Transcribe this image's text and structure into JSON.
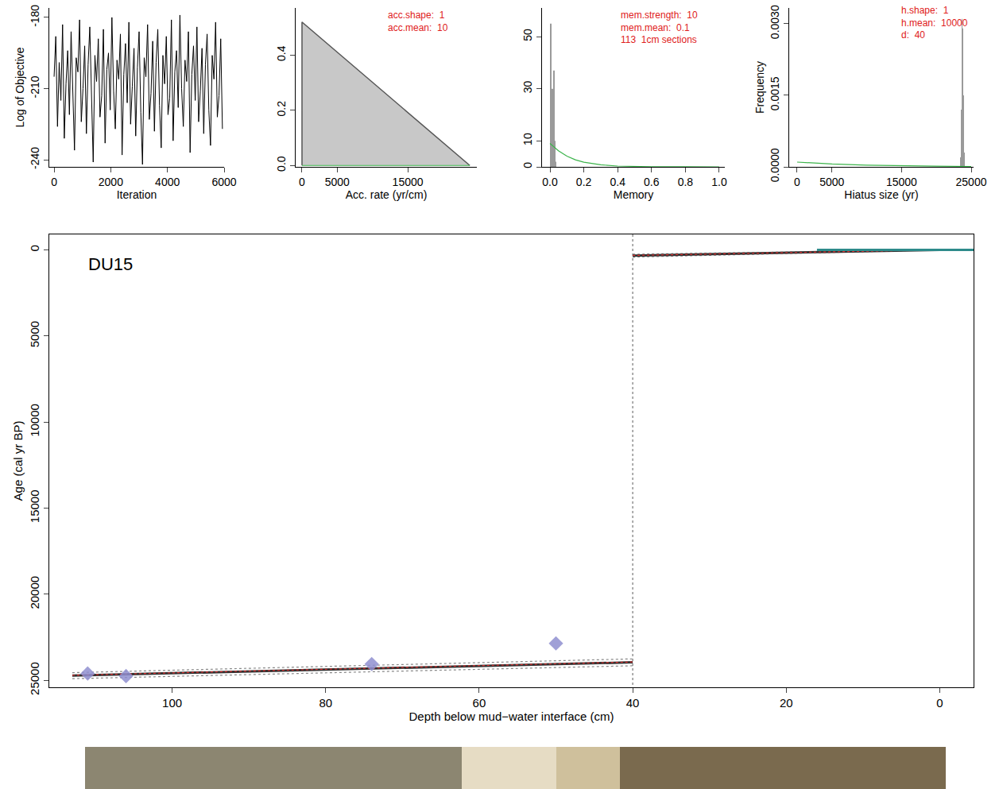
{
  "chart_data": [
    {
      "type": "line",
      "xlabel": "Iteration",
      "ylabel": "Log of Objective",
      "xlim": [
        -170,
        6000
      ],
      "ylim": [
        -243,
        -176
      ],
      "xticks": [
        0,
        2000,
        4000,
        6000
      ],
      "yticks": [
        -240,
        -210,
        -180
      ],
      "series": [
        {
          "type": "line",
          "color": "#000000",
          "line_style": "solid",
          "x": [
            0,
            60,
            120,
            180,
            240,
            300,
            360,
            420,
            480,
            540,
            600,
            660,
            720,
            780,
            840,
            900,
            960,
            1020,
            1080,
            1140,
            1200,
            1260,
            1320,
            1380,
            1440,
            1500,
            1560,
            1620,
            1680,
            1740,
            1800,
            1860,
            1920,
            1980,
            2040,
            2100,
            2160,
            2220,
            2280,
            2340,
            2400,
            2460,
            2520,
            2580,
            2640,
            2700,
            2760,
            2820,
            2880,
            2940,
            3000,
            3060,
            3120,
            3180,
            3240,
            3300,
            3360,
            3420,
            3480,
            3540,
            3600,
            3660,
            3720,
            3780,
            3840,
            3900,
            3960,
            4020,
            4080,
            4140,
            4200,
            4260,
            4320,
            4380,
            4440,
            4500,
            4560,
            4620,
            4680,
            4740,
            4800,
            4860,
            4920,
            4980,
            5040,
            5100,
            5160,
            5220,
            5280,
            5340,
            5400,
            5460,
            5520,
            5580,
            5640,
            5700,
            5760,
            5820,
            5880,
            5940
          ],
          "values": [
            -205,
            -188,
            -226,
            -199,
            -215,
            -183,
            -231,
            -208,
            -194,
            -221,
            -186,
            -212,
            -236,
            -197,
            -203,
            -181,
            -224,
            -210,
            -192,
            -229,
            -200,
            -184,
            -218,
            -241,
            -196,
            -207,
            -189,
            -222,
            -213,
            -185,
            -233,
            -202,
            -195,
            -219,
            -180,
            -211,
            -227,
            -198,
            -206,
            -187,
            -238,
            -204,
            -191,
            -216,
            -182,
            -225,
            -209,
            -193,
            -230,
            -201,
            -186,
            -220,
            -242,
            -197,
            -205,
            -183,
            -223,
            -212,
            -190,
            -228,
            -199,
            -185,
            -217,
            -235,
            -196,
            -208,
            -188,
            -221,
            -214,
            -181,
            -232,
            -203,
            -194,
            -218,
            -179,
            -210,
            -226,
            -198,
            -207,
            -186,
            -237,
            -204,
            -192,
            -215,
            -184,
            -224,
            -211,
            -193,
            -229,
            -200,
            -187,
            -219,
            -234,
            -196,
            -206,
            -182,
            -222,
            -213,
            -189,
            -227
          ]
        }
      ]
    },
    {
      "type": "area",
      "xlabel": "Acc. rate (yr/cm)",
      "xlim": [
        -900,
        24800
      ],
      "ylim": [
        -0.005,
        0.571
      ],
      "xticks": [
        0,
        5000,
        15000
      ],
      "yticks": [
        {
          "value": 0,
          "label": "0.0"
        },
        {
          "value": 0.2,
          "label": "0.2"
        },
        {
          "value": 0.4,
          "label": "0.4"
        }
      ],
      "annotations": [
        "acc.shape:  1",
        "acc.mean:  10"
      ],
      "series": [
        {
          "type": "area",
          "color": "#c8c8c8",
          "x": [
            0,
            0,
            23800
          ],
          "values": [
            0,
            0.52,
            0
          ]
        },
        {
          "type": "line",
          "color": "#3cb44b",
          "line_style": "solid",
          "x": [
            0,
            23800
          ],
          "values": [
            0,
            0
          ]
        }
      ]
    },
    {
      "type": "bar",
      "xlabel": "Memory",
      "xlim": [
        -0.047,
        1.033
      ],
      "ylim": [
        0,
        61
      ],
      "xticks": [
        {
          "value": 0,
          "label": "0.0"
        },
        {
          "value": 0.2,
          "label": "0.2"
        },
        {
          "value": 0.4,
          "label": "0.4"
        },
        {
          "value": 0.6,
          "label": "0.6"
        },
        {
          "value": 0.8,
          "label": "0.8"
        },
        {
          "value": 1,
          "label": "1.0"
        }
      ],
      "yticks": [
        0,
        10,
        30,
        50
      ],
      "annotations": [
        "mem.strength:  10",
        "mem.mean:  0.1",
        "113  1cm sections"
      ],
      "series": [
        {
          "type": "bar",
          "color": "#9a9a9a",
          "x": [
            0.005,
            0.01,
            0.015,
            0.02,
            0.025,
            0.03,
            0.035
          ],
          "values": [
            55,
            8,
            30,
            20,
            37,
            10,
            2
          ]
        },
        {
          "type": "line",
          "color": "#3cb44b",
          "line_style": "solid",
          "x": [
            0,
            0.05,
            0.1,
            0.15,
            0.2,
            0.3,
            0.4,
            0.5,
            0.6,
            0.8,
            1.0
          ],
          "values": [
            9,
            6.2,
            4.1,
            2.7,
            1.8,
            0.8,
            0.3,
            0.12,
            0.05,
            0.01,
            0
          ]
        }
      ]
    },
    {
      "type": "bar",
      "xlabel": "Hiatus size (yr)",
      "ylabel": "Frequency",
      "xlim": [
        -1140,
        25340
      ],
      "ylim": [
        0,
        0.00333
      ],
      "xticks": [
        0,
        5000,
        15000,
        25000
      ],
      "yticks": [
        {
          "value": 0,
          "label": "0.0000"
        },
        {
          "value": 0.0015,
          "label": "0.0015"
        },
        {
          "value": 0.003,
          "label": "0.0030"
        }
      ],
      "annotations": [
        "h.shape:  1",
        "h.mean:  10000",
        "d:  40"
      ],
      "series": [
        {
          "type": "bar",
          "color": "#9a9a9a",
          "x": [
            23500,
            23600,
            23700,
            23800,
            23900,
            24000
          ],
          "values": [
            0.0002,
            0.0012,
            0.0031,
            0.0029,
            0.0015,
            0.0003
          ]
        },
        {
          "type": "line",
          "color": "#3cb44b",
          "line_style": "solid",
          "x": [
            0,
            5000,
            10000,
            15000,
            20000,
            25000
          ],
          "values": [
            0.0001,
            6e-05,
            3.7e-05,
            2.2e-05,
            1.35e-05,
            8.2e-06
          ]
        }
      ]
    },
    {
      "type": "line",
      "xlabel": "Depth below mud−water interface (cm)",
      "ylabel": "Age (cal yr BP)",
      "xlim": [
        116,
        -4.4
      ],
      "ylim": [
        25400,
        -900
      ],
      "xticks": [
        100,
        80,
        60,
        40,
        20,
        0
      ],
      "yticks": [
        0,
        5000,
        10000,
        15000,
        20000,
        25000
      ],
      "annotations": [
        "DU15"
      ],
      "series": [
        {
          "type": "line",
          "color": "#777777",
          "line_style": "dotted",
          "x": [
            40,
            40
          ],
          "values": [
            -900,
            25400
          ]
        },
        {
          "type": "line",
          "color": "#888888",
          "line_style": "dotted",
          "x": [
            113,
            40
          ],
          "values": [
            24900,
            24150
          ]
        },
        {
          "type": "line",
          "color": "#888888",
          "line_style": "dotted",
          "x": [
            113,
            40
          ],
          "values": [
            24550,
            23750
          ]
        },
        {
          "type": "line",
          "color": "#333333",
          "line_style": "solid",
          "x": [
            113,
            40
          ],
          "values": [
            24720,
            23950
          ]
        },
        {
          "type": "line",
          "color": "#e03030",
          "line_style": "dotted",
          "x": [
            113,
            40
          ],
          "values": [
            24700,
            23930
          ]
        },
        {
          "type": "line",
          "color": "#888888",
          "line_style": "dotted",
          "x": [
            40,
            0
          ],
          "values": [
            420,
            0
          ]
        },
        {
          "type": "line",
          "color": "#888888",
          "line_style": "dotted",
          "x": [
            40,
            0
          ],
          "values": [
            250,
            0
          ]
        },
        {
          "type": "line",
          "color": "#333333",
          "line_style": "solid",
          "x": [
            40,
            0
          ],
          "values": [
            330,
            0
          ]
        },
        {
          "type": "line",
          "color": "#e03030",
          "line_style": "dotted",
          "x": [
            40,
            0
          ],
          "values": [
            320,
            0
          ]
        },
        {
          "type": "line",
          "color": "#2e8b8b",
          "line_style": "solid",
          "x": [
            16,
            -4.4
          ],
          "values": [
            0,
            0
          ]
        },
        {
          "type": "scatter",
          "color": "#8f8fd0",
          "marker": "diamond",
          "x": [
            111,
            106,
            74,
            50
          ],
          "values": [
            24600,
            24750,
            24050,
            22850
          ]
        }
      ]
    }
  ]
}
